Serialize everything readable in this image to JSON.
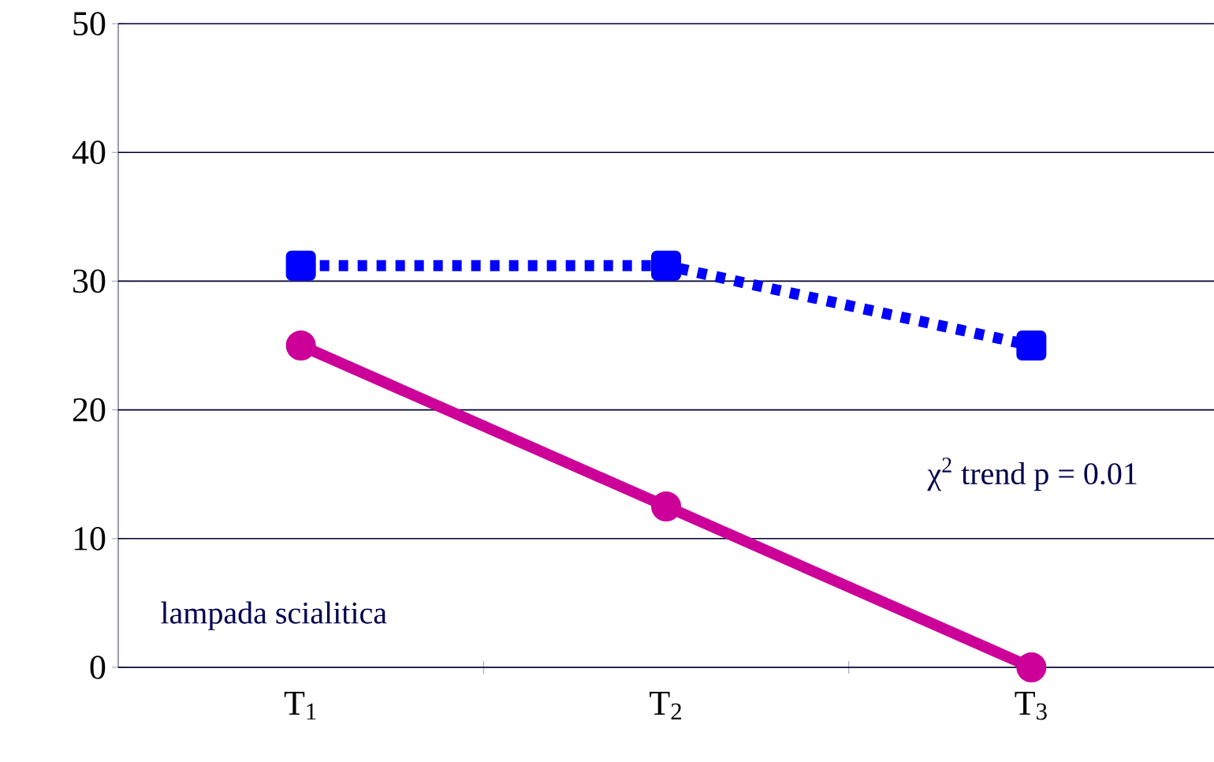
{
  "chart_data": {
    "type": "line",
    "categories": [
      "T$_{1}$",
      "T$_{2}$",
      "T$_{3}$"
    ],
    "series": [
      {
        "color": "#0000ff",
        "values": [
          31.2,
          31.2,
          25
        ],
        "marker": "square",
        "line_style": "dotted"
      },
      {
        "color": "#cc0099",
        "values": [
          25,
          12.5,
          0
        ],
        "marker": "circle",
        "line_style": "solid"
      }
    ],
    "ylim": [
      0,
      50
    ],
    "yticks": [
      0,
      10,
      20,
      30,
      40,
      50
    ],
    "grid": "y",
    "annotations": [
      "χ$^{2}$ trend p = 0.01",
      "lampada scialitica"
    ]
  }
}
